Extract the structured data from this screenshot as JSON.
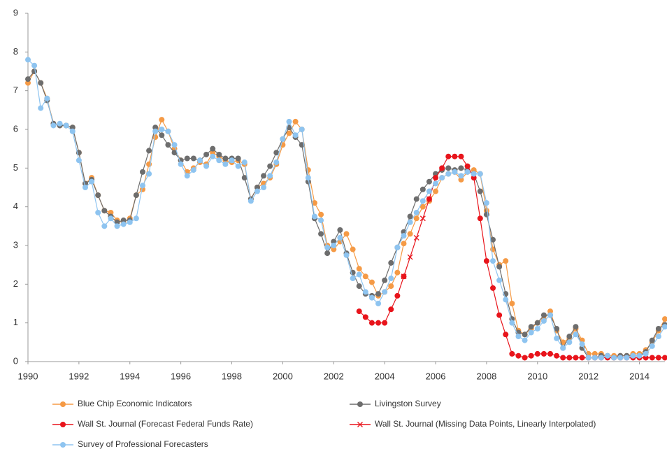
{
  "chart_data": {
    "type": "line",
    "x": [
      1990,
      1990.25,
      1990.5,
      1990.75,
      1991,
      1991.25,
      1991.5,
      1991.75,
      1992,
      1992.25,
      1992.5,
      1992.75,
      1993,
      1993.25,
      1993.5,
      1993.75,
      1994,
      1994.25,
      1994.5,
      1994.75,
      1995,
      1995.25,
      1995.5,
      1995.75,
      1996,
      1996.25,
      1996.5,
      1996.75,
      1997,
      1997.25,
      1997.5,
      1997.75,
      1998,
      1998.25,
      1998.5,
      1998.75,
      1999,
      1999.25,
      1999.5,
      1999.75,
      2000,
      2000.25,
      2000.5,
      2000.75,
      2001,
      2001.25,
      2001.5,
      2001.75,
      2002,
      2002.25,
      2002.5,
      2002.75,
      2003,
      2003.25,
      2003.5,
      2003.75,
      2004,
      2004.25,
      2004.5,
      2004.75,
      2005,
      2005.25,
      2005.5,
      2005.75,
      2006,
      2006.25,
      2006.5,
      2006.75,
      2007,
      2007.25,
      2007.5,
      2007.75,
      2008,
      2008.25,
      2008.5,
      2008.75,
      2009,
      2009.25,
      2009.5,
      2009.75,
      2010,
      2010.25,
      2010.5,
      2010.75,
      2011,
      2011.25,
      2011.5,
      2011.75,
      2012,
      2012.25,
      2012.5,
      2012.75,
      2013,
      2013.25,
      2013.5,
      2013.75,
      2014,
      2014.25,
      2014.5,
      2014.75,
      2015
    ],
    "series": [
      {
        "name": "Blue Chip Economic Indicators",
        "color": "#f59a45",
        "marker": "circle",
        "values": [
          7.2,
          7.5,
          7.2,
          6.8,
          6.15,
          6.1,
          6.1,
          6.05,
          5.4,
          4.6,
          4.75,
          4.3,
          3.9,
          3.85,
          3.65,
          3.6,
          3.7,
          4.3,
          4.45,
          5.1,
          5.8,
          6.25,
          5.95,
          5.5,
          5.2,
          4.9,
          5.0,
          5.15,
          5.1,
          5.4,
          5.3,
          5.2,
          5.15,
          5.2,
          5.1,
          4.2,
          4.5,
          4.6,
          4.75,
          5.1,
          5.6,
          5.9,
          6.2,
          6.0,
          4.95,
          4.1,
          3.8,
          3.0,
          2.9,
          3.1,
          3.3,
          2.9,
          2.4,
          2.2,
          2.05,
          1.7,
          1.8,
          1.95,
          2.3,
          3.05,
          3.3,
          3.7,
          4.0,
          4.15,
          4.4,
          4.75,
          4.85,
          4.9,
          4.7,
          4.9,
          4.95,
          4.85,
          3.9,
          2.9,
          2.5,
          2.6,
          1.5,
          0.8,
          0.7,
          0.85,
          1.0,
          1.1,
          1.3,
          0.8,
          0.5,
          0.6,
          0.85,
          0.55,
          0.2,
          0.2,
          0.2,
          0.15,
          0.15,
          0.15,
          0.15,
          0.2,
          0.2,
          0.3,
          0.5,
          0.8,
          1.1
        ]
      },
      {
        "name": "Livingston Survey",
        "color": "#6d6d6d",
        "marker": "circle",
        "values": [
          7.3,
          7.5,
          7.2,
          6.75,
          6.15,
          6.1,
          6.1,
          6.05,
          5.4,
          4.6,
          4.7,
          4.3,
          3.9,
          3.75,
          3.6,
          3.65,
          3.65,
          4.3,
          4.9,
          5.45,
          6.05,
          5.85,
          5.6,
          5.4,
          5.2,
          5.25,
          5.25,
          5.2,
          5.35,
          5.5,
          5.35,
          5.25,
          5.25,
          5.25,
          4.75,
          4.2,
          4.5,
          4.8,
          5.05,
          5.4,
          5.75,
          6.05,
          5.8,
          5.6,
          4.65,
          3.7,
          3.3,
          2.8,
          3.1,
          3.4,
          2.8,
          2.3,
          1.95,
          1.75,
          1.7,
          1.75,
          2.1,
          2.55,
          2.95,
          3.35,
          3.75,
          4.2,
          4.45,
          4.65,
          4.85,
          4.95,
          5.0,
          4.95,
          5.0,
          4.95,
          4.85,
          4.4,
          3.8,
          3.15,
          2.45,
          1.75,
          1.1,
          0.75,
          0.7,
          0.9,
          1.0,
          1.2,
          1.2,
          0.85,
          0.35,
          0.65,
          0.9,
          0.35,
          0.1,
          0.1,
          0.15,
          0.15,
          0.1,
          0.15,
          0.15,
          0.15,
          0.15,
          0.25,
          0.55,
          0.85,
          0.95
        ]
      },
      {
        "name": "Wall St. Journal (Forecast Federal Funds Rate)",
        "color": "#e8141b",
        "marker": "circle",
        "values": [
          null,
          null,
          null,
          null,
          null,
          null,
          null,
          null,
          null,
          null,
          null,
          null,
          null,
          null,
          null,
          null,
          null,
          null,
          null,
          null,
          null,
          null,
          null,
          null,
          null,
          null,
          null,
          null,
          null,
          null,
          null,
          null,
          null,
          null,
          null,
          null,
          null,
          null,
          null,
          null,
          null,
          null,
          null,
          null,
          null,
          null,
          null,
          null,
          null,
          null,
          null,
          null,
          1.3,
          1.15,
          1.0,
          1.0,
          1.0,
          1.35,
          1.7,
          2.2,
          null,
          null,
          null,
          4.2,
          4.75,
          5.0,
          5.3,
          5.3,
          5.3,
          5.05,
          4.75,
          3.7,
          2.6,
          1.9,
          1.2,
          0.7,
          0.2,
          0.15,
          0.1,
          0.15,
          0.2,
          0.2,
          0.2,
          0.15,
          0.1,
          0.1,
          0.1,
          0.1,
          0.1,
          0.1,
          0.1,
          0.1,
          0.1,
          0.1,
          0.1,
          0.1,
          0.1,
          0.1,
          0.1,
          0.1,
          0.1
        ]
      },
      {
        "name": "Wall St. Journal (Missing Data Points, Linearly Interpolated)",
        "color": "#e8141b",
        "marker": "x",
        "values": [
          null,
          null,
          null,
          null,
          null,
          null,
          null,
          null,
          null,
          null,
          null,
          null,
          null,
          null,
          null,
          null,
          null,
          null,
          null,
          null,
          null,
          null,
          null,
          null,
          null,
          null,
          null,
          null,
          null,
          null,
          null,
          null,
          null,
          null,
          null,
          null,
          null,
          null,
          null,
          null,
          null,
          null,
          null,
          null,
          null,
          null,
          null,
          null,
          null,
          null,
          null,
          null,
          null,
          null,
          null,
          null,
          null,
          null,
          null,
          2.2,
          2.7,
          3.2,
          3.7,
          4.2,
          null,
          null,
          null,
          null,
          null,
          null,
          null,
          null,
          null,
          null,
          null,
          null,
          null,
          null,
          null,
          null,
          null,
          null,
          null,
          null,
          null,
          null,
          null,
          null,
          null,
          null,
          null,
          null,
          null,
          null,
          null,
          null,
          null,
          null,
          null,
          null,
          null
        ]
      },
      {
        "name": "Survey of Professional Forecasters",
        "color": "#8ec4f0",
        "marker": "circle",
        "values": [
          7.8,
          7.65,
          6.55,
          6.8,
          6.1,
          6.15,
          6.1,
          5.95,
          5.2,
          4.5,
          4.65,
          3.85,
          3.5,
          3.7,
          3.5,
          3.55,
          3.6,
          3.7,
          4.55,
          4.85,
          5.95,
          6.0,
          5.95,
          5.6,
          5.1,
          4.8,
          4.95,
          5.2,
          5.05,
          5.3,
          5.2,
          5.1,
          5.2,
          5.05,
          5.15,
          4.15,
          4.4,
          4.5,
          4.8,
          5.15,
          5.75,
          6.2,
          5.85,
          6.0,
          4.75,
          3.75,
          3.65,
          2.95,
          3.0,
          3.2,
          2.75,
          2.15,
          2.25,
          1.8,
          1.65,
          1.5,
          1.8,
          2.15,
          2.95,
          3.25,
          3.6,
          3.85,
          4.15,
          4.4,
          4.6,
          4.75,
          4.85,
          4.9,
          4.8,
          4.9,
          4.85,
          4.85,
          4.1,
          2.6,
          2.1,
          1.6,
          1.0,
          0.65,
          0.55,
          0.75,
          0.85,
          1.05,
          1.2,
          0.6,
          0.35,
          0.5,
          0.7,
          0.45,
          0.1,
          0.1,
          0.1,
          0.15,
          0.1,
          0.1,
          0.1,
          0.15,
          0.15,
          0.2,
          0.4,
          0.65,
          0.9
        ]
      }
    ],
    "xlim": [
      1990,
      2015
    ],
    "xticks": [
      1990,
      1992,
      1994,
      1996,
      1998,
      2000,
      2002,
      2004,
      2006,
      2008,
      2010,
      2012,
      2014
    ],
    "ylim": [
      0,
      9
    ],
    "yticks": [
      0,
      1,
      2,
      3,
      4,
      5,
      6,
      7,
      8,
      9
    ],
    "grid": false,
    "legend": "bottom"
  }
}
